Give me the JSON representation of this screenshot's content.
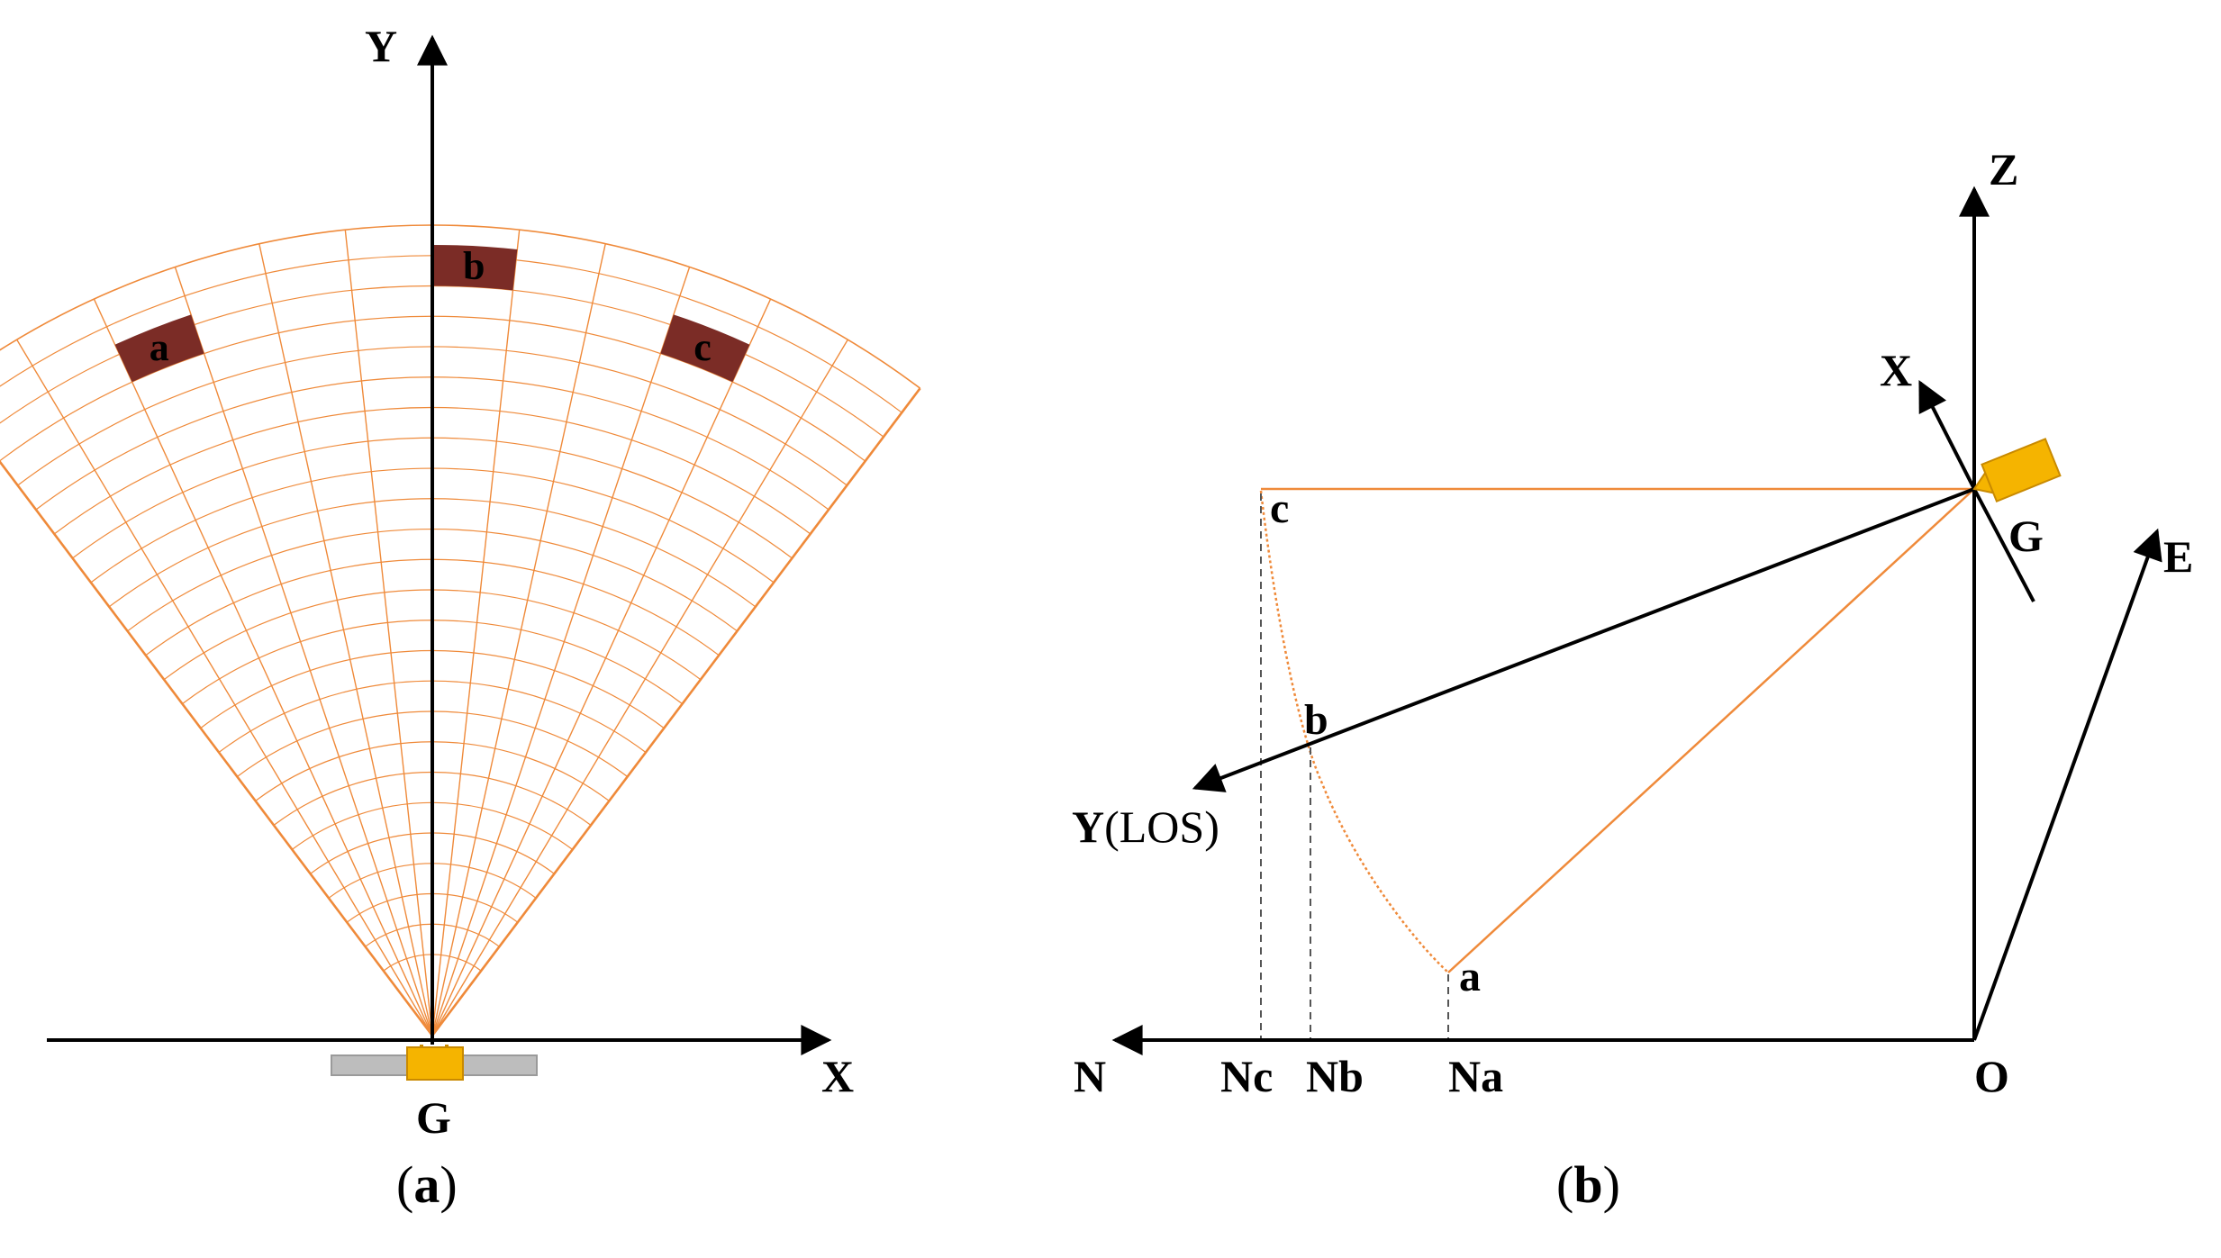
{
  "panel_a": {
    "caption": "(a)",
    "axis_x_label": "X",
    "axis_y_label": "Y",
    "sensor_label": "G",
    "cell_labels": [
      "a",
      "b",
      "c"
    ],
    "fan_rings": 24,
    "fan_rays": 12
  },
  "panel_b": {
    "caption": "(b)",
    "axis_z_label": "Z",
    "axis_n_label": "N",
    "axis_e_label": "E",
    "axis_x_label": "X",
    "los_label_bold": "Y",
    "los_label_plain": "(LOS)",
    "origin_label": "O",
    "sensor_label": "G",
    "point_labels": [
      "a",
      "b",
      "c"
    ],
    "ground_labels": [
      "Nc",
      "Nb",
      "Na"
    ]
  },
  "colors": {
    "grid_orange": "#ef8a3a",
    "cell_fill": "#7b2c26",
    "sensor_yellow": "#f5b400",
    "sensor_stroke": "#c98a00",
    "sensor_bar_gray": "#bdbdbd",
    "line_black": "#000000",
    "dashed_gray": "#555555"
  },
  "icons": {
    "sensor_a": "sensor-rect-icon",
    "sensor_b": "camera-box-icon"
  }
}
